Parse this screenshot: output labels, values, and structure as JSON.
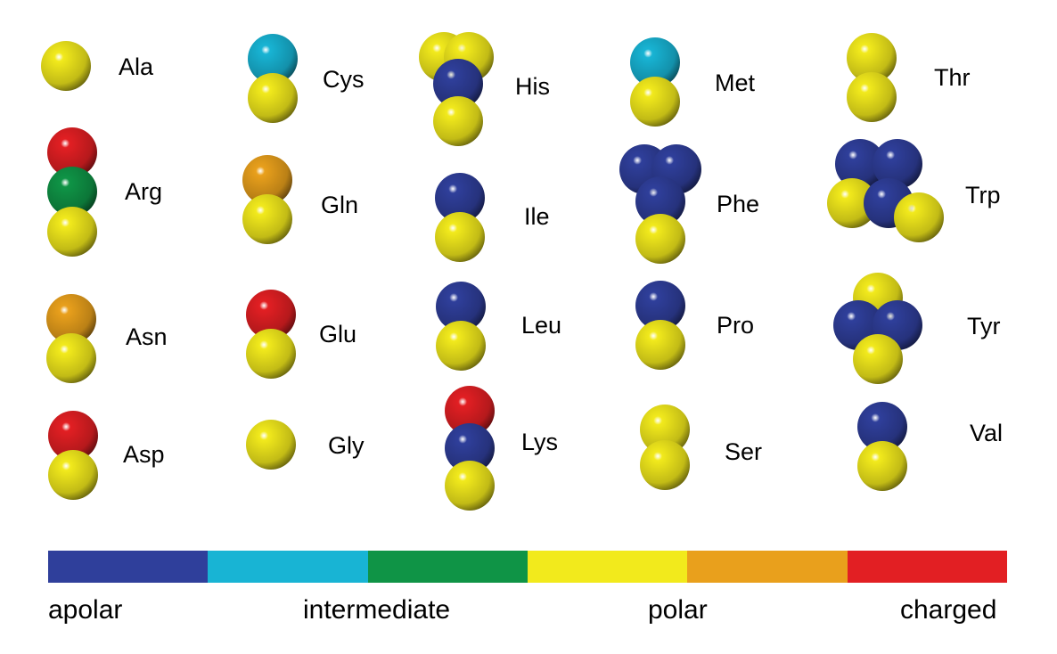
{
  "colors": {
    "apolar": "#2f3f9b",
    "intermediate_light": "#18b4d4",
    "intermediate_dark": "#0f9446",
    "polar": "#f2ea1c",
    "polar_dark": "#e9a01c",
    "charged": "#e21f23"
  },
  "residues": [
    {
      "key": "ala",
      "label": "Ala",
      "beads": [
        "polar"
      ]
    },
    {
      "key": "arg",
      "label": "Arg",
      "beads": [
        "charged",
        "intermediate_dark",
        "polar"
      ]
    },
    {
      "key": "asn",
      "label": "Asn",
      "beads": [
        "polar_dark",
        "polar"
      ]
    },
    {
      "key": "asp",
      "label": "Asp",
      "beads": [
        "charged",
        "polar"
      ]
    },
    {
      "key": "cys",
      "label": "Cys",
      "beads": [
        "intermediate_light",
        "polar"
      ]
    },
    {
      "key": "gln",
      "label": "Gln",
      "beads": [
        "polar_dark",
        "polar"
      ]
    },
    {
      "key": "glu",
      "label": "Glu",
      "beads": [
        "charged",
        "polar"
      ]
    },
    {
      "key": "gly",
      "label": "Gly",
      "beads": [
        "polar"
      ]
    },
    {
      "key": "his",
      "label": "His",
      "beads": [
        "polar",
        "polar",
        "apolar",
        "polar"
      ]
    },
    {
      "key": "ile",
      "label": "Ile",
      "beads": [
        "apolar",
        "polar"
      ]
    },
    {
      "key": "leu",
      "label": "Leu",
      "beads": [
        "apolar",
        "polar"
      ]
    },
    {
      "key": "lys",
      "label": "Lys",
      "beads": [
        "charged",
        "apolar",
        "polar"
      ]
    },
    {
      "key": "met",
      "label": "Met",
      "beads": [
        "intermediate_light",
        "polar"
      ]
    },
    {
      "key": "phe",
      "label": "Phe",
      "beads": [
        "apolar",
        "apolar",
        "apolar",
        "polar"
      ]
    },
    {
      "key": "pro",
      "label": "Pro",
      "beads": [
        "apolar",
        "polar"
      ]
    },
    {
      "key": "ser",
      "label": "Ser",
      "beads": [
        "polar",
        "polar"
      ]
    },
    {
      "key": "thr",
      "label": "Thr",
      "beads": [
        "polar",
        "polar"
      ]
    },
    {
      "key": "trp",
      "label": "Trp",
      "beads": [
        "apolar",
        "apolar",
        "polar",
        "apolar",
        "polar"
      ]
    },
    {
      "key": "tyr",
      "label": "Tyr",
      "beads": [
        "polar",
        "apolar",
        "apolar",
        "polar"
      ]
    },
    {
      "key": "val",
      "label": "Val",
      "beads": [
        "apolar",
        "polar"
      ]
    }
  ],
  "scale": {
    "segments": [
      "apolar",
      "intermediate_light",
      "intermediate_dark",
      "polar",
      "polar_dark",
      "charged"
    ],
    "labels": {
      "apolar": "apolar",
      "intermediate": "intermediate",
      "polar": "polar",
      "charged": "charged"
    }
  }
}
